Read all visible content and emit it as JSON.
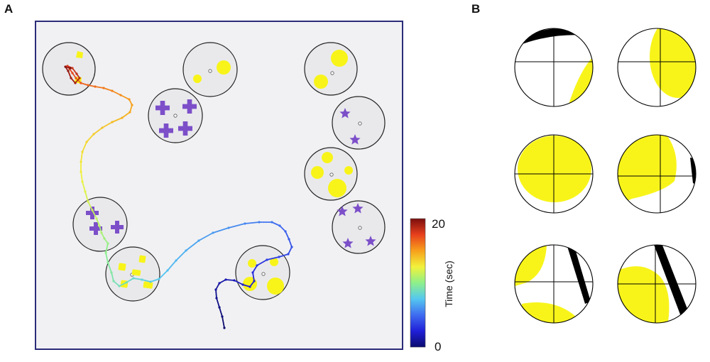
{
  "panels": {
    "a": {
      "label": "A"
    },
    "b": {
      "label": "B"
    }
  },
  "colorbar": {
    "title": "Time (sec)",
    "max_label": "20",
    "min_label": "0",
    "range": [
      0,
      20
    ],
    "stops": [
      "#0b0b6e",
      "#2020d8",
      "#3f6cf0",
      "#54c8f0",
      "#8ef08a",
      "#f2f23a",
      "#f7a01c",
      "#e8401c",
      "#7a0e0e"
    ]
  },
  "colors": {
    "arena_fill": "#f1f1f3",
    "arena_border": "#2b2b7a",
    "patch_fill": "#e9e9ec",
    "yellow_object": "#f8f41a",
    "purple_object": "#7c4fc9",
    "occluder": "#000000"
  }
}
